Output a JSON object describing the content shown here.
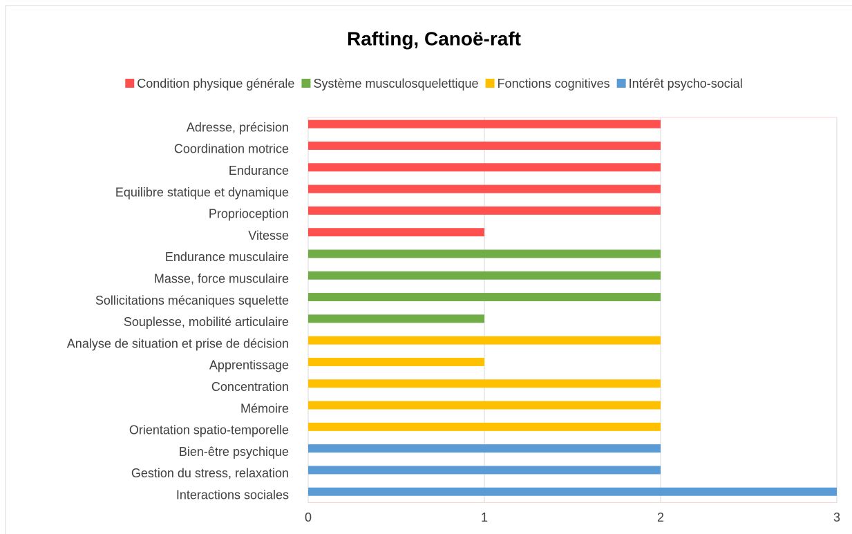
{
  "chart_data": {
    "type": "hbar",
    "title": "Rafting, Canoë-raft",
    "categories": [
      "Adresse, précision",
      "Coordination motrice",
      "Endurance",
      "Equilibre statique et dynamique",
      "Proprioception",
      "Vitesse",
      "Endurance musculaire",
      "Masse,  force musculaire",
      "Sollicitations mécaniques squelette",
      "Souplesse, mobilité articulaire",
      "Analyse de situation et prise de décision",
      "Apprentissage",
      "Concentration",
      "Mémoire",
      "Orientation spatio-temporelle",
      "Bien-être psychique",
      "Gestion du stress, relaxation",
      "Interactions sociales"
    ],
    "series": [
      {
        "name": "Condition physique générale",
        "color": "#ff5050",
        "values": [
          2,
          2,
          2,
          2,
          2,
          1,
          null,
          null,
          null,
          null,
          null,
          null,
          null,
          null,
          null,
          null,
          null,
          null
        ]
      },
      {
        "name": "Système musculosquelettique",
        "color": "#70ad47",
        "values": [
          null,
          null,
          null,
          null,
          null,
          null,
          2,
          2,
          2,
          1,
          null,
          null,
          null,
          null,
          null,
          null,
          null,
          null
        ]
      },
      {
        "name": "Fonctions cognitives",
        "color": "#ffc000",
        "values": [
          null,
          null,
          null,
          null,
          null,
          null,
          null,
          null,
          null,
          null,
          2,
          1,
          2,
          2,
          2,
          null,
          null,
          null
        ]
      },
      {
        "name": "Intérêt psycho-social",
        "color": "#5b9bd5",
        "values": [
          null,
          null,
          null,
          null,
          null,
          null,
          null,
          null,
          null,
          null,
          null,
          null,
          null,
          null,
          null,
          2,
          2,
          3
        ]
      }
    ],
    "xlim": [
      0,
      3
    ],
    "xticks": [
      0,
      1,
      2,
      3
    ],
    "grid": true,
    "legend": "top"
  }
}
